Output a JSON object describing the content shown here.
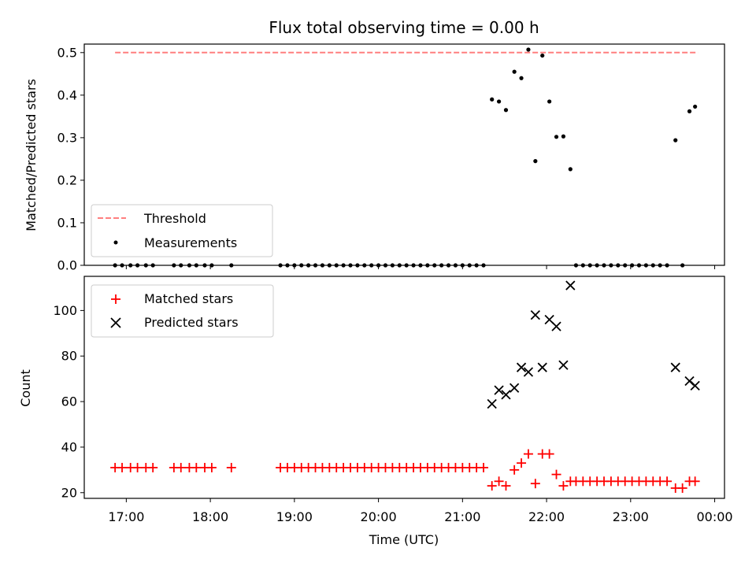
{
  "chart_data": [
    {
      "type": "scatter",
      "title": "Flux total observing time = 0.00 h",
      "ylabel": "Matched/Predicted stars",
      "xlabel": "",
      "xlim": [
        "16:30",
        "00:07"
      ],
      "ylim": [
        0,
        0.52
      ],
      "yticks": [
        0.0,
        0.1,
        0.2,
        0.3,
        0.4,
        0.5
      ],
      "ytick_labels": [
        "0.0",
        "0.1",
        "0.2",
        "0.3",
        "0.4",
        "0.5"
      ],
      "xticks": [
        "17:00",
        "18:00",
        "19:00",
        "20:00",
        "21:00",
        "22:00",
        "23:00",
        "00:00"
      ],
      "legend": {
        "placement": "lower-left",
        "entries": [
          {
            "label": "Threshold",
            "color": "#ff7f7f",
            "marker": "dashed-line"
          },
          {
            "label": "Measurements",
            "color": "#000000",
            "marker": "dot"
          }
        ]
      },
      "threshold": {
        "name": "Threshold",
        "value": 0.5,
        "x_start": "16:52",
        "x_end": "23:48",
        "color": "#ff7f7f"
      },
      "series": [
        {
          "name": "Measurements",
          "color": "#000000",
          "points": [
            [
              "16:52",
              0
            ],
            [
              "16:57",
              0
            ],
            [
              "17:03",
              0
            ],
            [
              "17:08",
              0
            ],
            [
              "17:14",
              0
            ],
            [
              "17:19",
              0
            ],
            [
              "17:34",
              0
            ],
            [
              "17:39",
              0
            ],
            [
              "17:45",
              0
            ],
            [
              "17:50",
              0
            ],
            [
              "17:56",
              0
            ],
            [
              "18:01",
              0
            ],
            [
              "18:15",
              0
            ],
            [
              "18:50",
              0
            ],
            [
              "18:55",
              0
            ],
            [
              "19:00",
              0
            ],
            [
              "19:05",
              0
            ],
            [
              "19:10",
              0
            ],
            [
              "19:15",
              0
            ],
            [
              "19:20",
              0
            ],
            [
              "19:25",
              0
            ],
            [
              "19:30",
              0
            ],
            [
              "19:35",
              0
            ],
            [
              "19:40",
              0
            ],
            [
              "19:45",
              0
            ],
            [
              "19:50",
              0
            ],
            [
              "19:55",
              0
            ],
            [
              "20:00",
              0
            ],
            [
              "20:05",
              0
            ],
            [
              "20:10",
              0
            ],
            [
              "20:15",
              0
            ],
            [
              "20:20",
              0
            ],
            [
              "20:25",
              0
            ],
            [
              "20:30",
              0
            ],
            [
              "20:35",
              0
            ],
            [
              "20:40",
              0
            ],
            [
              "20:45",
              0
            ],
            [
              "20:50",
              0
            ],
            [
              "20:55",
              0
            ],
            [
              "21:00",
              0
            ],
            [
              "21:05",
              0
            ],
            [
              "21:10",
              0
            ],
            [
              "21:15",
              0
            ],
            [
              "21:21",
              0.39
            ],
            [
              "21:26",
              0.385
            ],
            [
              "21:31",
              0.365
            ],
            [
              "21:37",
              0.455
            ],
            [
              "21:42",
              0.44
            ],
            [
              "21:47",
              0.507
            ],
            [
              "21:52",
              0.245
            ],
            [
              "21:57",
              0.493
            ],
            [
              "22:02",
              0.385
            ],
            [
              "22:07",
              0.302
            ],
            [
              "22:12",
              0.303
            ],
            [
              "22:17",
              0.226
            ],
            [
              "22:21",
              0
            ],
            [
              "22:26",
              0
            ],
            [
              "22:31",
              0
            ],
            [
              "22:36",
              0
            ],
            [
              "22:41",
              0
            ],
            [
              "22:46",
              0
            ],
            [
              "22:51",
              0
            ],
            [
              "22:56",
              0
            ],
            [
              "23:01",
              0
            ],
            [
              "23:06",
              0
            ],
            [
              "23:11",
              0
            ],
            [
              "23:16",
              0
            ],
            [
              "23:21",
              0
            ],
            [
              "23:26",
              0
            ],
            [
              "23:32",
              0.294
            ],
            [
              "23:37",
              0
            ],
            [
              "23:42",
              0.362
            ],
            [
              "23:46",
              0.373
            ]
          ]
        }
      ]
    },
    {
      "type": "scatter",
      "title": "",
      "ylabel": "Count",
      "xlabel": "Time (UTC)",
      "xlim": [
        "16:30",
        "00:07"
      ],
      "ylim": [
        17.5,
        115
      ],
      "yticks": [
        20,
        40,
        60,
        80,
        100
      ],
      "ytick_labels": [
        "20",
        "40",
        "60",
        "80",
        "100"
      ],
      "xticks": [
        "17:00",
        "18:00",
        "19:00",
        "20:00",
        "21:00",
        "22:00",
        "23:00",
        "00:00"
      ],
      "xtick_labels": [
        "17:00",
        "18:00",
        "19:00",
        "20:00",
        "21:00",
        "22:00",
        "23:00",
        "00:00"
      ],
      "legend": {
        "placement": "top-left",
        "entries": [
          {
            "label": "Matched stars",
            "color": "#ff0000",
            "marker": "plus"
          },
          {
            "label": "Predicted stars",
            "color": "#000000",
            "marker": "x"
          }
        ]
      },
      "series": [
        {
          "name": "Matched stars",
          "color": "#ff0000",
          "points": [
            [
              "16:52",
              31
            ],
            [
              "16:57",
              31
            ],
            [
              "17:03",
              31
            ],
            [
              "17:08",
              31
            ],
            [
              "17:14",
              31
            ],
            [
              "17:19",
              31
            ],
            [
              "17:34",
              31
            ],
            [
              "17:39",
              31
            ],
            [
              "17:45",
              31
            ],
            [
              "17:50",
              31
            ],
            [
              "17:56",
              31
            ],
            [
              "18:01",
              31
            ],
            [
              "18:15",
              31
            ],
            [
              "18:50",
              31
            ],
            [
              "18:55",
              31
            ],
            [
              "19:00",
              31
            ],
            [
              "19:05",
              31
            ],
            [
              "19:10",
              31
            ],
            [
              "19:15",
              31
            ],
            [
              "19:20",
              31
            ],
            [
              "19:25",
              31
            ],
            [
              "19:30",
              31
            ],
            [
              "19:35",
              31
            ],
            [
              "19:40",
              31
            ],
            [
              "19:45",
              31
            ],
            [
              "19:50",
              31
            ],
            [
              "19:55",
              31
            ],
            [
              "20:00",
              31
            ],
            [
              "20:05",
              31
            ],
            [
              "20:10",
              31
            ],
            [
              "20:15",
              31
            ],
            [
              "20:20",
              31
            ],
            [
              "20:25",
              31
            ],
            [
              "20:30",
              31
            ],
            [
              "20:35",
              31
            ],
            [
              "20:40",
              31
            ],
            [
              "20:45",
              31
            ],
            [
              "20:50",
              31
            ],
            [
              "20:55",
              31
            ],
            [
              "21:00",
              31
            ],
            [
              "21:05",
              31
            ],
            [
              "21:10",
              31
            ],
            [
              "21:15",
              31
            ],
            [
              "21:21",
              23
            ],
            [
              "21:26",
              25
            ],
            [
              "21:31",
              23
            ],
            [
              "21:37",
              30
            ],
            [
              "21:42",
              33
            ],
            [
              "21:47",
              37
            ],
            [
              "21:52",
              24
            ],
            [
              "21:57",
              37
            ],
            [
              "22:02",
              37
            ],
            [
              "22:07",
              28
            ],
            [
              "22:12",
              23
            ],
            [
              "22:17",
              25
            ],
            [
              "22:21",
              25
            ],
            [
              "22:26",
              25
            ],
            [
              "22:31",
              25
            ],
            [
              "22:36",
              25
            ],
            [
              "22:41",
              25
            ],
            [
              "22:46",
              25
            ],
            [
              "22:51",
              25
            ],
            [
              "22:56",
              25
            ],
            [
              "23:01",
              25
            ],
            [
              "23:06",
              25
            ],
            [
              "23:11",
              25
            ],
            [
              "23:16",
              25
            ],
            [
              "23:21",
              25
            ],
            [
              "23:26",
              25
            ],
            [
              "23:32",
              22
            ],
            [
              "23:37",
              22
            ],
            [
              "23:42",
              25
            ],
            [
              "23:46",
              25
            ]
          ]
        },
        {
          "name": "Predicted stars",
          "color": "#000000",
          "points": [
            [
              "21:21",
              59
            ],
            [
              "21:26",
              65
            ],
            [
              "21:31",
              63
            ],
            [
              "21:37",
              66
            ],
            [
              "21:42",
              75
            ],
            [
              "21:47",
              73
            ],
            [
              "21:52",
              98
            ],
            [
              "21:57",
              75
            ],
            [
              "22:02",
              96
            ],
            [
              "22:07",
              93
            ],
            [
              "22:12",
              76
            ],
            [
              "22:17",
              111
            ],
            [
              "23:32",
              75
            ],
            [
              "23:42",
              69
            ],
            [
              "23:46",
              67
            ]
          ]
        }
      ]
    }
  ]
}
